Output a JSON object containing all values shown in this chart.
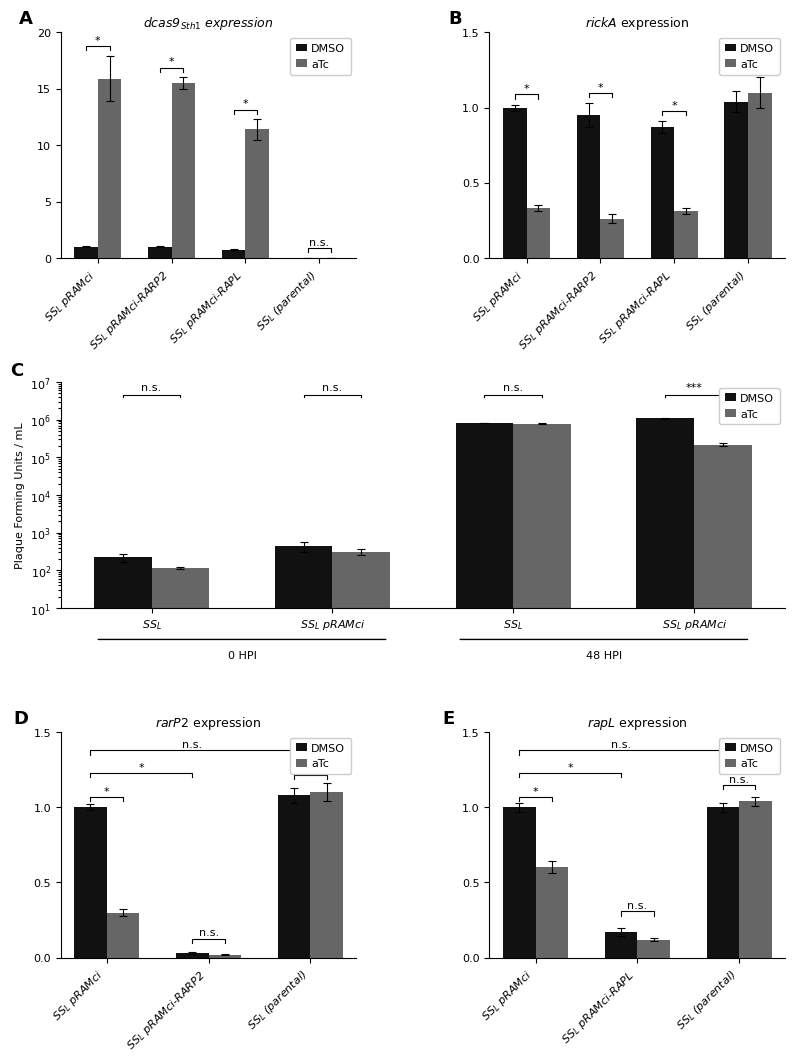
{
  "panel_A": {
    "title": "dcas9$_{Sth1}$ expression",
    "categories": [
      "$SS_L$ pRAMci",
      "$SS_L$ pRAMci-RARP2",
      "$SS_L$ pRAMci-RAPL",
      "$SS_L$ (parental)"
    ],
    "dmso_vals": [
      1.0,
      1.0,
      0.75,
      0.0
    ],
    "atc_vals": [
      15.9,
      15.5,
      11.4,
      0.0
    ],
    "dmso_err": [
      0.05,
      0.05,
      0.05,
      0.0
    ],
    "atc_err": [
      2.0,
      0.5,
      0.9,
      0.0
    ],
    "ylim": [
      0,
      20
    ],
    "yticks": [
      0,
      5,
      10,
      15,
      20
    ],
    "sig": [
      "*",
      "*",
      "*",
      "n.s."
    ]
  },
  "panel_B": {
    "title": "$\\mathit{rickA}$ expression",
    "categories": [
      "$SS_L$ pRAMci",
      "$SS_L$ pRAMci-RARP2",
      "$SS_L$ pRAMci-RAPL",
      "$SS_L$ (parental)"
    ],
    "dmso_vals": [
      1.0,
      0.95,
      0.87,
      1.04
    ],
    "atc_vals": [
      0.33,
      0.26,
      0.31,
      1.1
    ],
    "dmso_err": [
      0.02,
      0.08,
      0.04,
      0.07
    ],
    "atc_err": [
      0.02,
      0.03,
      0.02,
      0.1
    ],
    "ylim": [
      0,
      1.5
    ],
    "yticks": [
      0,
      0.5,
      1.0,
      1.5
    ],
    "sig": [
      "*",
      "*",
      "*",
      "n.s."
    ]
  },
  "panel_C": {
    "ylabel": "Plaque Forming Units / mL",
    "categories": [
      "$SS_L$",
      "$SS_L$ pRAMci",
      "$SS_L$",
      "$SS_L$ pRAMci"
    ],
    "group_labels": [
      "0 HPI",
      "48 HPI"
    ],
    "dmso_vals": [
      220,
      430,
      820000,
      1100000
    ],
    "atc_vals": [
      115,
      310,
      790000,
      220000
    ],
    "dmso_err": [
      50,
      120,
      20000,
      40000
    ],
    "atc_err": [
      10,
      50,
      15000,
      15000
    ],
    "ylim_log": [
      10,
      10000000.0
    ],
    "sig": [
      "n.s.",
      "n.s.",
      "n.s.",
      "***"
    ]
  },
  "panel_D": {
    "title": "$\\mathit{rarP2}$ expression",
    "categories": [
      "$SS_L$ pRAMci",
      "$SS_L$ pRAMci-RARP2",
      "$SS_L$ (parental)"
    ],
    "dmso_vals": [
      1.0,
      0.03,
      1.08
    ],
    "atc_vals": [
      0.3,
      0.02,
      1.1
    ],
    "dmso_err": [
      0.02,
      0.005,
      0.05
    ],
    "atc_err": [
      0.02,
      0.005,
      0.06
    ],
    "ylim": [
      0,
      1.5
    ],
    "yticks": [
      0,
      0.5,
      1.0,
      1.5
    ]
  },
  "panel_E": {
    "title": "$\\mathit{rapL}$ expression",
    "categories": [
      "$SS_L$ pRAMci",
      "$SS_L$ pRAMci-RAPL",
      "$SS_L$ (parental)"
    ],
    "dmso_vals": [
      1.0,
      0.17,
      1.0
    ],
    "atc_vals": [
      0.6,
      0.12,
      1.04
    ],
    "dmso_err": [
      0.03,
      0.025,
      0.03
    ],
    "atc_err": [
      0.04,
      0.01,
      0.03
    ],
    "ylim": [
      0,
      1.5
    ],
    "yticks": [
      0,
      0.5,
      1.0,
      1.5
    ]
  },
  "colors": {
    "dmso": "#111111",
    "atc": "#666666"
  },
  "bar_width": 0.32,
  "capsize": 3
}
